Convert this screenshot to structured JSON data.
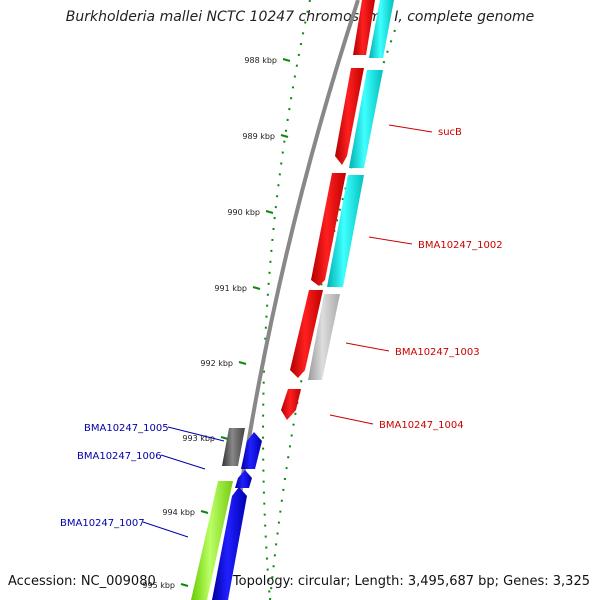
{
  "title": "Burkholderia mallei NCTC 10247 chromosome I, complete genome",
  "footer": {
    "accession": "Accession: NC_009080",
    "topology": "Topology: circular; Length: 3,495,687 bp; Genes: 3,325"
  },
  "ruler": {
    "ticks": [
      {
        "label": "988 kbp"
      },
      {
        "label": "989 kbp"
      },
      {
        "label": "990 kbp"
      },
      {
        "label": "991 kbp"
      },
      {
        "label": "992 kbp"
      },
      {
        "label": "993 kbp"
      },
      {
        "label": "994 kbp"
      },
      {
        "label": "995 kbp"
      }
    ]
  },
  "genes": [
    {
      "label": "sucB",
      "color": "#cc0000"
    },
    {
      "label": "BMA10247_1002",
      "color": "#cc0000"
    },
    {
      "label": "BMA10247_1003",
      "color": "#cc0000"
    },
    {
      "label": "BMA10247_1004",
      "color": "#cc0000"
    },
    {
      "label": "BMA10247_1005",
      "color": "#0000aa"
    },
    {
      "label": "BMA10247_1006",
      "color": "#0000aa"
    },
    {
      "label": "BMA10247_1007",
      "color": "#0000aa"
    }
  ],
  "colors": {
    "reverse_cds": "#ff0000",
    "reverse_aux": "#00ffff",
    "forward_cds": "#0000ff",
    "forward_aux": "#99ff33",
    "grey_feature": "#bbbbbb",
    "dark_feature": "#555555",
    "backbone": "#888888",
    "ruler": "#007700"
  }
}
